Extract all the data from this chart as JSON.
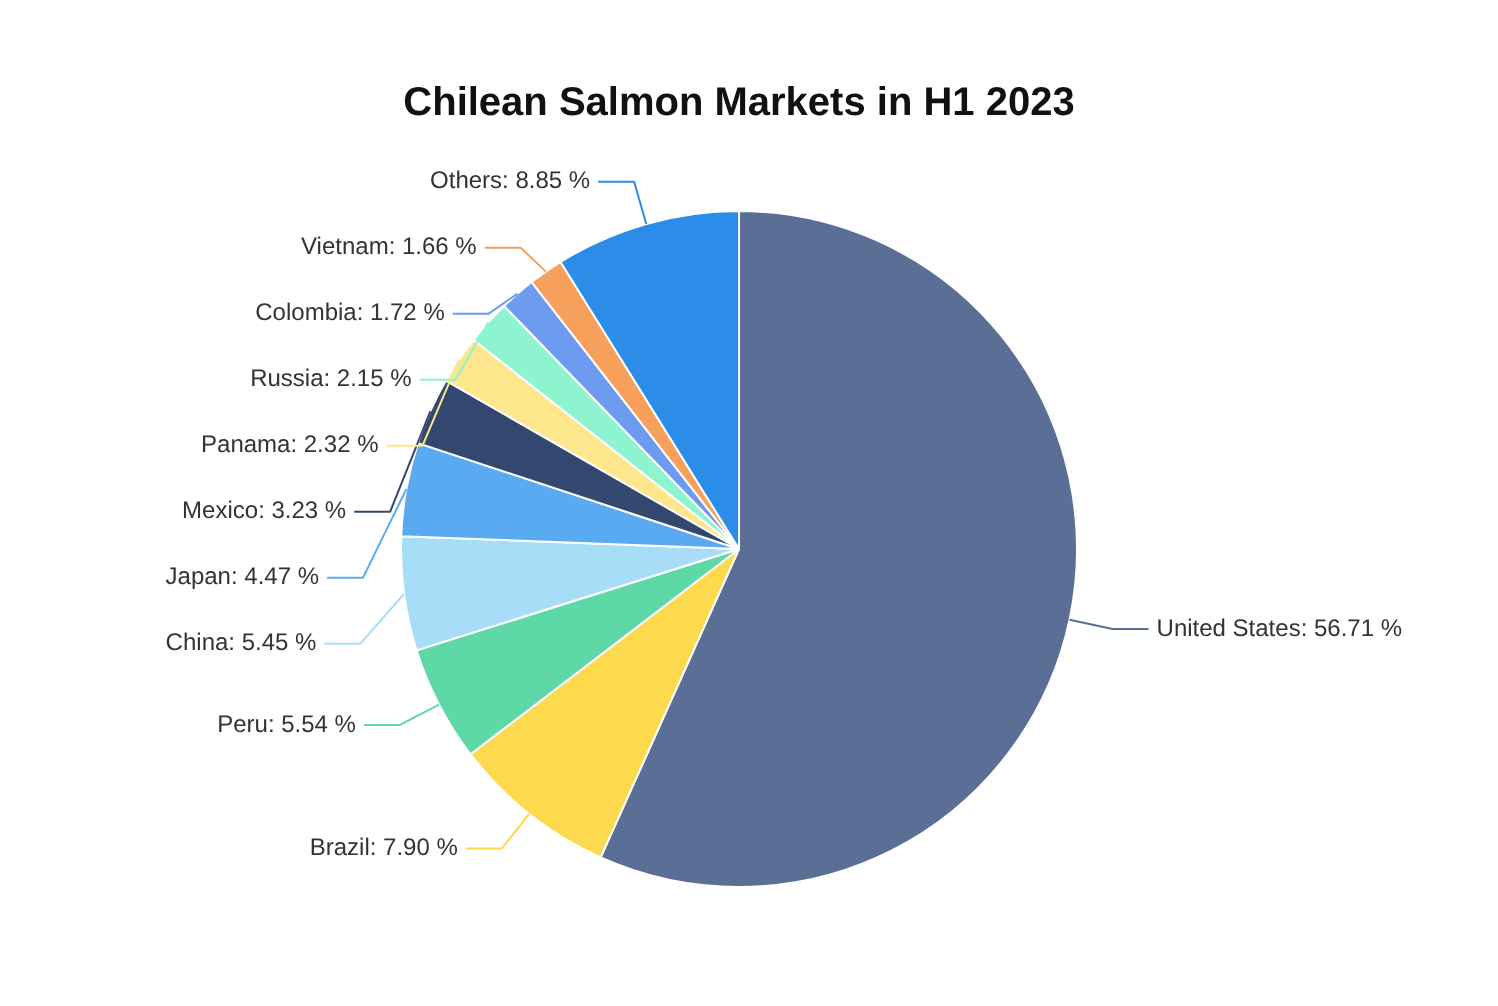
{
  "chart_data": {
    "type": "pie",
    "title": "Chilean Salmon Markets in H1 2023",
    "categories": [
      "United States",
      "Brazil",
      "Peru",
      "China",
      "Japan",
      "Mexico",
      "Panama",
      "Russia",
      "Colombia",
      "Vietnam",
      "Others"
    ],
    "values": [
      56.71,
      7.9,
      5.54,
      5.45,
      4.47,
      3.23,
      2.32,
      2.15,
      1.72,
      1.66,
      8.85
    ],
    "value_labels": [
      "56.71 %",
      "7.90 %",
      "5.54 %",
      "5.45 %",
      "4.47 %",
      "3.23 %",
      "2.32 %",
      "2.15 %",
      "1.72 %",
      "1.66 %",
      "8.85 %"
    ],
    "colors": [
      "#5b6e96",
      "#fdd94d",
      "#5fd8a8",
      "#a8ddf8",
      "#5aaaf1",
      "#34486f",
      "#fde68c",
      "#8ef4cf",
      "#6c9bef",
      "#f6a05b",
      "#2b8de8"
    ],
    "legend": false
  }
}
